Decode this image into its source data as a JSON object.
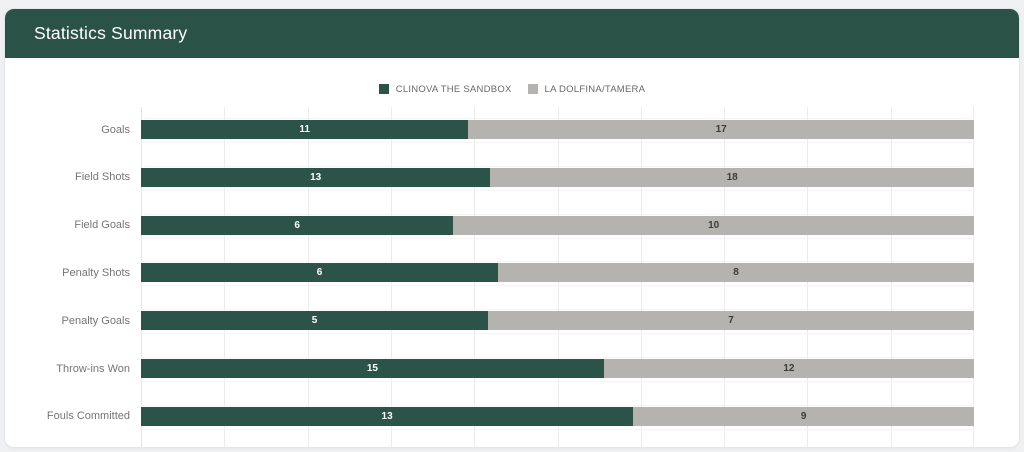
{
  "header": {
    "title": "Statistics Summary"
  },
  "colors": {
    "header_bg": "#2b5247",
    "team1": "#2c5348",
    "team2": "#b4b3b0",
    "gridline": "#ebebeb",
    "category_label": "#757575",
    "value_on_team1": "#ffffff",
    "value_on_team2": "#3b3b3b"
  },
  "chart_data": {
    "type": "bar",
    "subtype": "horizontal-100pct-stacked",
    "title": "Statistics Summary",
    "categories": [
      "Goals",
      "Field Shots",
      "Field Goals",
      "Penalty Shots",
      "Penalty Goals",
      "Throw-ins Won",
      "Fouls Committed"
    ],
    "series": [
      {
        "name": "CLINOVA THE SANDBOX",
        "color": "#2c5348",
        "values": [
          11,
          13,
          6,
          6,
          5,
          15,
          13
        ]
      },
      {
        "name": "LA DOLFINA/TAMERA",
        "color": "#b4b3b0",
        "values": [
          17,
          18,
          10,
          8,
          7,
          12,
          9
        ]
      }
    ],
    "legend_position": "top",
    "grid": true,
    "xlabel": "",
    "ylabel": "",
    "x_axis_range_pct": [
      0,
      100
    ]
  }
}
